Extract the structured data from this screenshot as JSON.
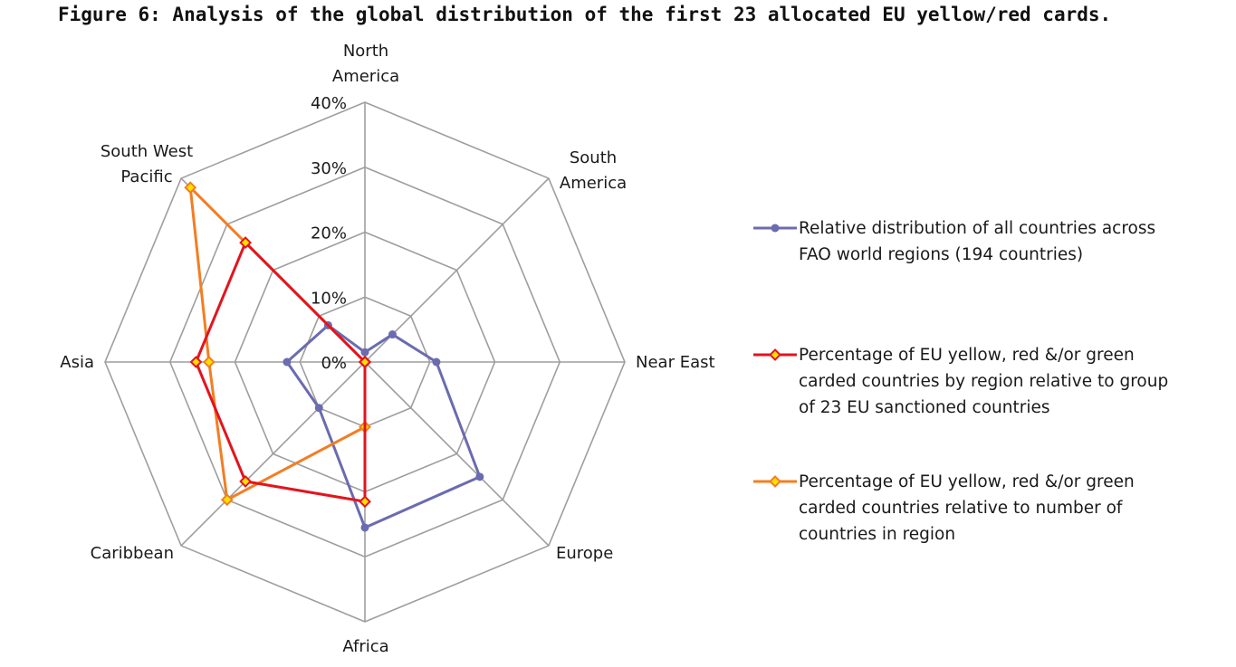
{
  "title": "Figure 6: Analysis of the global distribution of the first 23 allocated EU yellow/red cards.",
  "chart_data": {
    "type": "radar",
    "categories": [
      [
        "North",
        "America"
      ],
      [
        "South",
        "America"
      ],
      [
        "Near East"
      ],
      [
        "Europe"
      ],
      [
        "Africa"
      ],
      [
        "Caribbean"
      ],
      [
        "Asia"
      ],
      [
        "South West",
        "Pacific"
      ]
    ],
    "tick_labels": [
      "0%",
      "10%",
      "20%",
      "30%",
      "40%"
    ],
    "r_range": [
      0,
      40
    ],
    "grid": true,
    "legend_position": "right",
    "series": [
      {
        "name": "Relative distribution of all countries across FAO world regions (194 countries)",
        "color": "#6b6bb0",
        "marker": "circle",
        "values": [
          1.5,
          6.0,
          11.0,
          25.0,
          25.5,
          10.0,
          12.0,
          8.0
        ]
      },
      {
        "name": "Percentage of EU yellow, red &/or green carded countries by region relative to group of 23 EU sanctioned countries",
        "color": "#e3141e",
        "marker": "diamond",
        "values": [
          0,
          0,
          0,
          0,
          21.5,
          26.0,
          26.0,
          26.0
        ]
      },
      {
        "name": "Percentage of EU yellow, red &/or green carded countries relative to number of countries in region",
        "color": "#f47d22",
        "marker": "diamond",
        "values": [
          0,
          0,
          0,
          0,
          10.0,
          30.0,
          24.0,
          38.0
        ]
      }
    ]
  }
}
